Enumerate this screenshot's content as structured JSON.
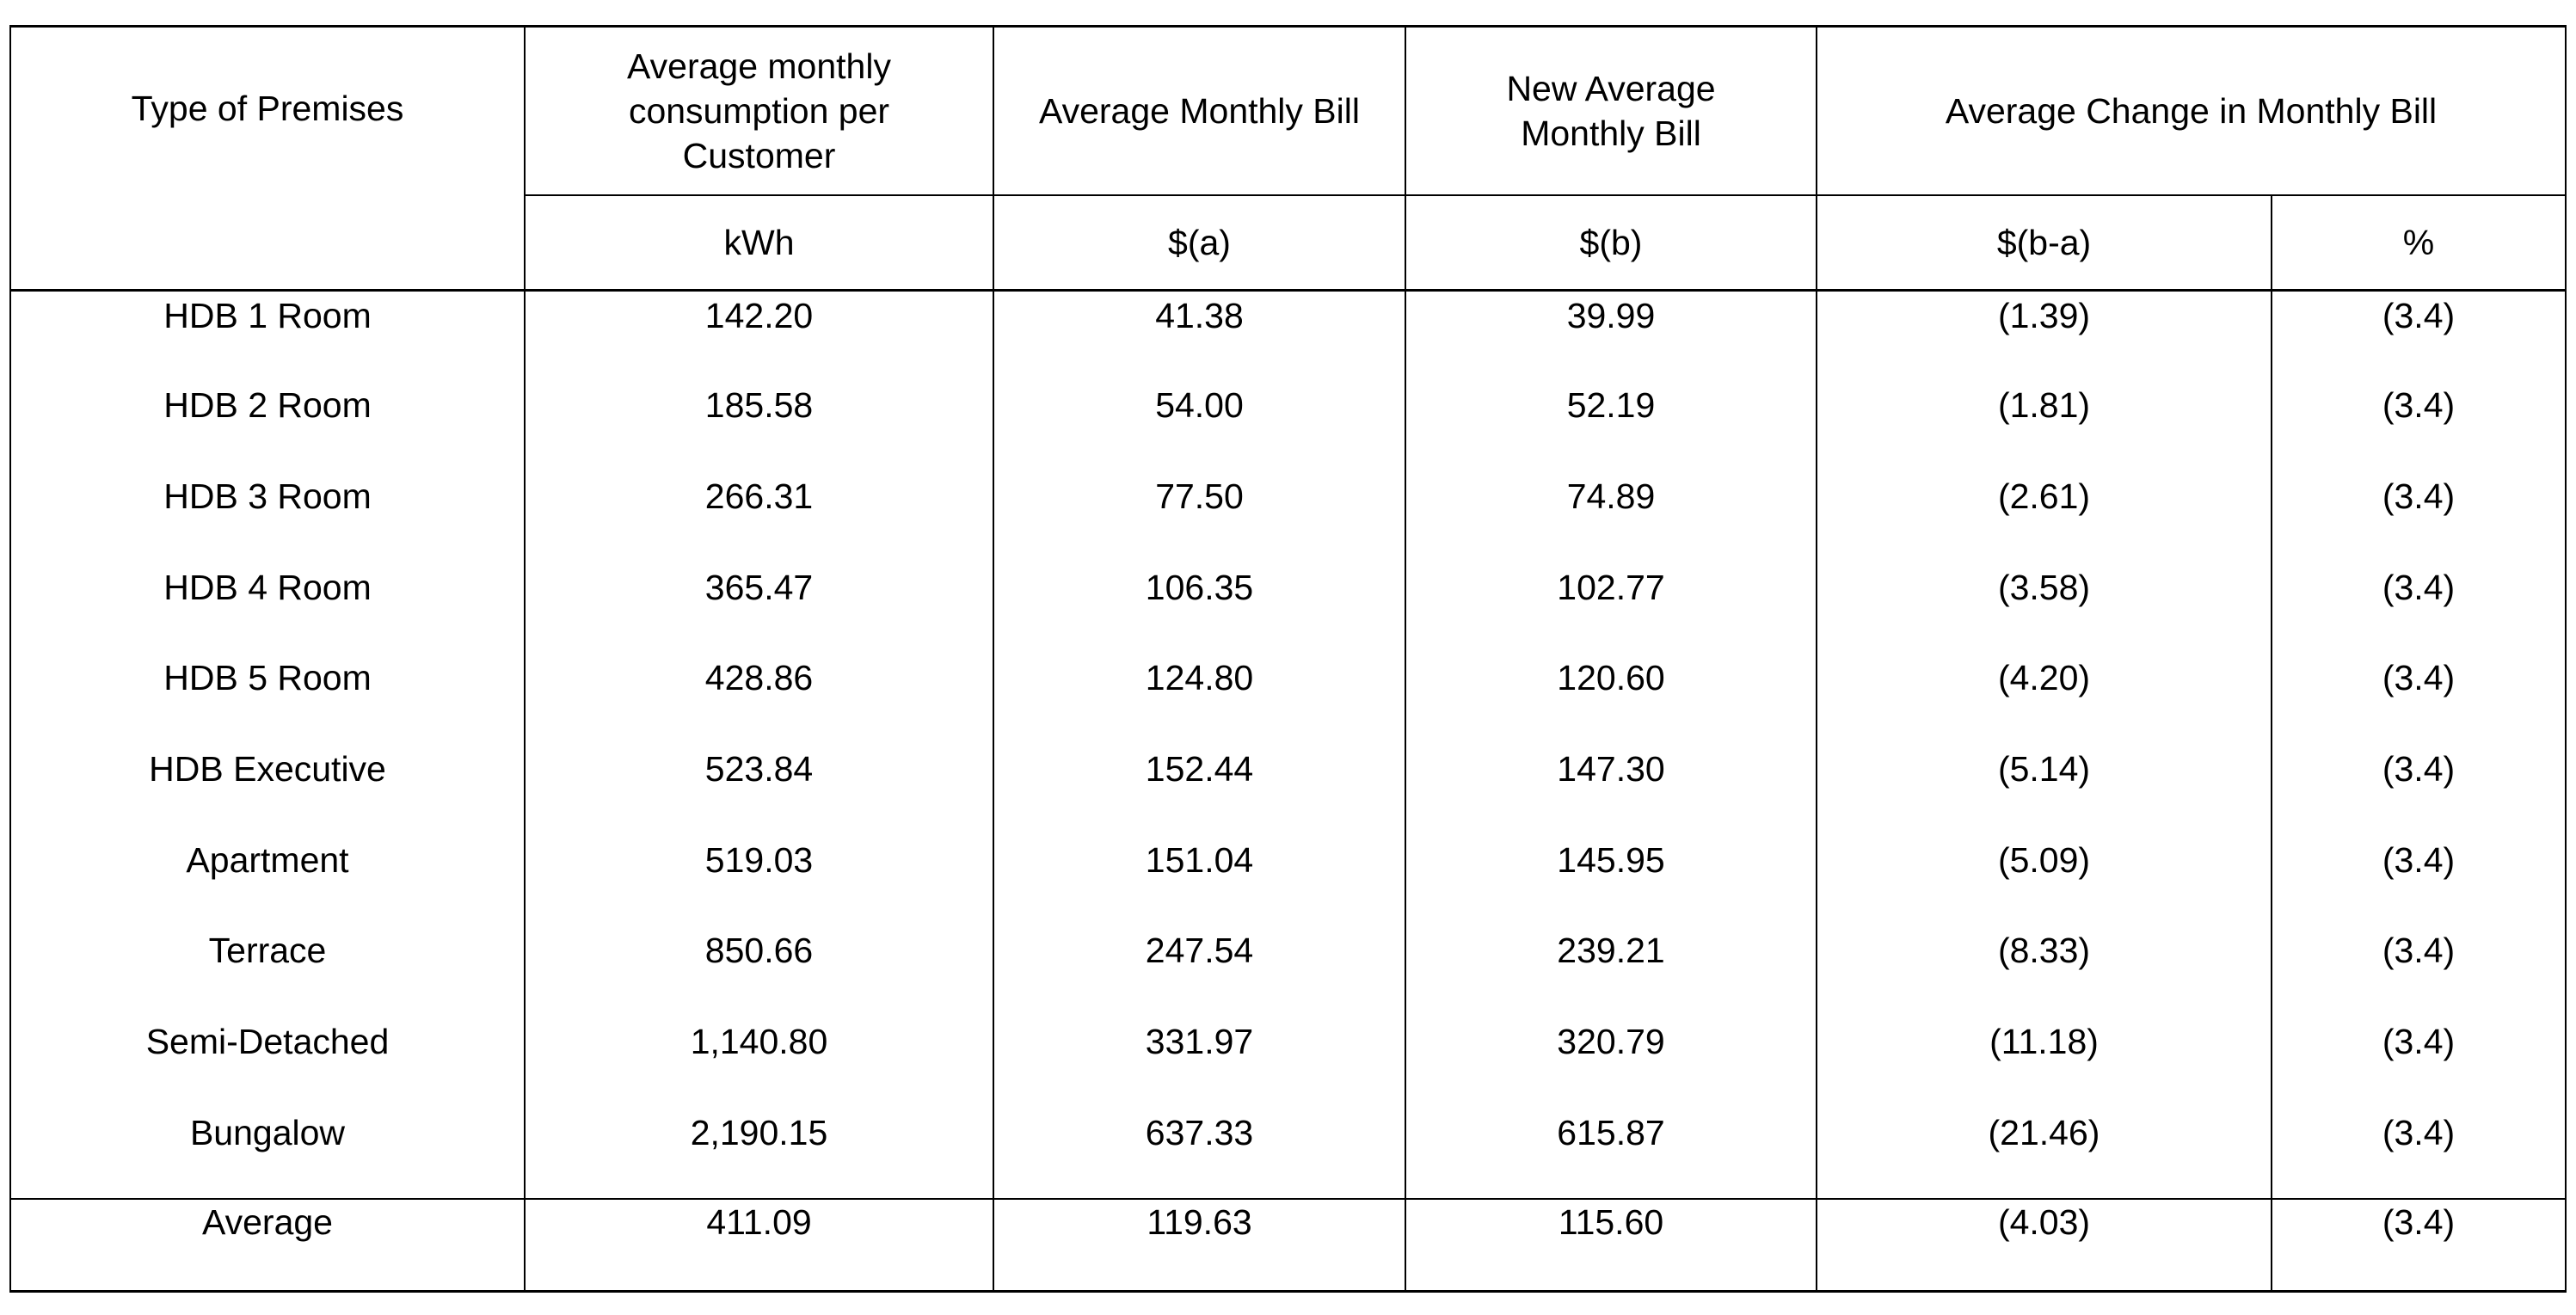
{
  "headers": {
    "type": "Type of Premises",
    "consumption": "Average monthly consumption per Customer",
    "bill": "Average Monthly Bill",
    "new_bill": "New Average Monthly Bill",
    "change": "Average Change in Monthly Bill"
  },
  "units": {
    "consumption": "kWh",
    "bill": "$(a)",
    "new_bill": "$(b)",
    "change_abs": "$(b-a)",
    "change_pct": "%"
  },
  "rows": [
    {
      "type": "HDB 1 Room",
      "kwh": "142.20",
      "a": "41.38",
      "b": "39.99",
      "diff": "(1.39)",
      "pct": "(3.4)"
    },
    {
      "type": "HDB 2 Room",
      "kwh": "185.58",
      "a": "54.00",
      "b": "52.19",
      "diff": "(1.81)",
      "pct": "(3.4)"
    },
    {
      "type": "HDB 3 Room",
      "kwh": "266.31",
      "a": "77.50",
      "b": "74.89",
      "diff": "(2.61)",
      "pct": "(3.4)"
    },
    {
      "type": "HDB 4 Room",
      "kwh": "365.47",
      "a": "106.35",
      "b": "102.77",
      "diff": "(3.58)",
      "pct": "(3.4)"
    },
    {
      "type": "HDB 5 Room",
      "kwh": "428.86",
      "a": "124.80",
      "b": "120.60",
      "diff": "(4.20)",
      "pct": "(3.4)"
    },
    {
      "type": "HDB Executive",
      "kwh": "523.84",
      "a": "152.44",
      "b": "147.30",
      "diff": "(5.14)",
      "pct": "(3.4)"
    },
    {
      "type": "Apartment",
      "kwh": "519.03",
      "a": "151.04",
      "b": "145.95",
      "diff": "(5.09)",
      "pct": "(3.4)"
    },
    {
      "type": "Terrace",
      "kwh": "850.66",
      "a": "247.54",
      "b": "239.21",
      "diff": "(8.33)",
      "pct": "(3.4)"
    },
    {
      "type": "Semi-Detached",
      "kwh": "1,140.80",
      "a": "331.97",
      "b": "320.79",
      "diff": "(11.18)",
      "pct": "(3.4)"
    },
    {
      "type": "Bungalow",
      "kwh": "2,190.15",
      "a": "637.33",
      "b": "615.87",
      "diff": "(21.46)",
      "pct": "(3.4)"
    }
  ],
  "average": {
    "type": "Average",
    "kwh": "411.09",
    "a": "119.63",
    "b": "115.60",
    "diff": "(4.03)",
    "pct": "(3.4)"
  }
}
